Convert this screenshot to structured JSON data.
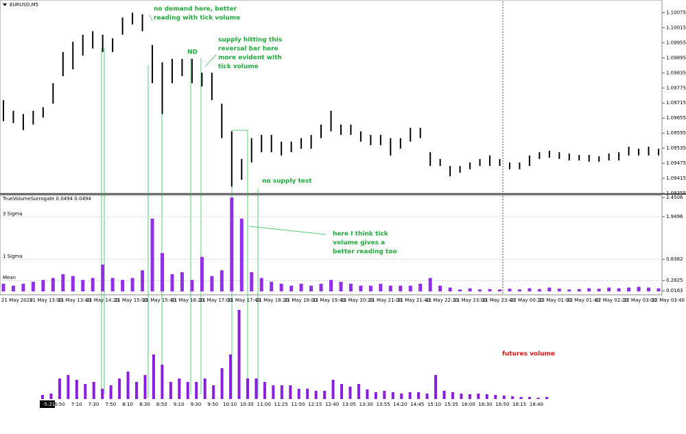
{
  "chart_data": [
    {
      "type": "range",
      "title": "EURUSD,M5",
      "color": "#000000",
      "high": [
        1.09726,
        1.09684,
        1.09671,
        1.09684,
        1.09698,
        1.09794,
        1.09918,
        1.09959,
        1.09987,
        1.10001,
        1.09987,
        1.09973,
        1.10056,
        1.10075,
        1.10069,
        1.09946,
        1.09877,
        1.09891,
        1.09891,
        1.09891,
        1.09836,
        1.09836,
        1.09712,
        1.09602,
        1.09492,
        1.09575,
        1.09588,
        1.09588,
        1.09561,
        1.09561,
        1.09575,
        1.09588,
        1.09629,
        1.09684,
        1.09629,
        1.09629,
        1.09602,
        1.09588,
        1.09588,
        1.09575,
        1.09575,
        1.09616,
        1.09616,
        1.09519,
        1.09492,
        1.09464,
        1.09464,
        1.09478,
        1.09492,
        1.09506,
        1.09492,
        1.09478,
        1.09478,
        1.09506,
        1.09519,
        1.09525,
        1.09519,
        1.09514,
        1.09508,
        1.09508,
        1.09503,
        1.09514,
        1.09519,
        1.09541,
        1.09533,
        1.09541,
        1.09533
      ],
      "low": [
        1.09643,
        1.09635,
        1.09607,
        1.09629,
        1.09657,
        1.09712,
        1.09822,
        1.09849,
        1.09904,
        1.09932,
        1.09918,
        1.09918,
        1.09987,
        1.10028,
        1.10001,
        1.09794,
        1.09671,
        1.09794,
        1.09822,
        1.09794,
        1.09781,
        1.09726,
        1.09575,
        1.09382,
        1.09409,
        1.09478,
        1.09519,
        1.09519,
        1.09506,
        1.09519,
        1.09533,
        1.09533,
        1.09575,
        1.09602,
        1.09588,
        1.09588,
        1.09561,
        1.09547,
        1.09547,
        1.09506,
        1.09533,
        1.09561,
        1.09575,
        1.09464,
        1.09464,
        1.09423,
        1.09437,
        1.09451,
        1.09464,
        1.09464,
        1.09464,
        1.09451,
        1.09451,
        1.09464,
        1.09492,
        1.09497,
        1.09492,
        1.09486,
        1.09486,
        1.09481,
        1.09481,
        1.09486,
        1.09486,
        1.09506,
        1.09506,
        1.09506,
        1.09506
      ],
      "ylim": [
        1.09355,
        1.1012
      ],
      "yticks": [
        1.10075,
        1.10015,
        1.09955,
        1.09895,
        1.09835,
        1.09775,
        1.09715,
        1.09655,
        1.09595,
        1.09535,
        1.09475,
        1.09415,
        1.09355
      ]
    },
    {
      "type": "bar",
      "title": "TrueVolumeSurrogate 0.0494 0.0494",
      "color": "#9130e6",
      "values": [
        0.2,
        0.15,
        0.2,
        0.25,
        0.3,
        0.35,
        0.45,
        0.4,
        0.3,
        0.35,
        0.7,
        0.35,
        0.3,
        0.35,
        0.55,
        1.9,
        1.0,
        0.45,
        0.5,
        0.3,
        0.9,
        0.4,
        0.55,
        2.45,
        1.9,
        0.5,
        0.35,
        0.25,
        0.2,
        0.15,
        0.2,
        0.15,
        0.2,
        0.3,
        0.25,
        0.2,
        0.15,
        0.15,
        0.2,
        0.15,
        0.15,
        0.15,
        0.2,
        0.35,
        0.15,
        0.1,
        0.05,
        0.08,
        0.05,
        0.06,
        0.05,
        0.07,
        0.05,
        0.08,
        0.06,
        0.1,
        0.07,
        0.05,
        0.06,
        0.08,
        0.07,
        0.1,
        0.08,
        0.1,
        0.12,
        0.1,
        0.08
      ],
      "ylim": [
        0,
        2.4506
      ],
      "yticks": [
        2.4506,
        1.9496,
        0.8382,
        0.2825,
        0.0163
      ],
      "levels": [
        {
          "value": 1.9496,
          "label": "3 Sigma"
        },
        {
          "value": 0.8382,
          "label": "1 Sigma"
        },
        {
          "value": 0.2825,
          "label": "Mean"
        }
      ],
      "xticks": [
        "21 May 2020",
        "21 May 13:00",
        "21 May 13:40",
        "21 May 14:20",
        "21 May 15:00",
        "21 May 15:40",
        "21 May 16:20",
        "21 May 17:00",
        "21 May 17:40",
        "21 May 18:20",
        "21 May 19:00",
        "21 May 19:40",
        "21 May 20:20",
        "21 May 21:00",
        "21 May 21:40",
        "21 May 22:20",
        "21 May 23:00",
        "21 May 23:40",
        "22 May 00:20",
        "22 May 01:00",
        "22 May 01:40",
        "22 May 02:20",
        "22 May 03:00",
        "22 May 03:40"
      ]
    },
    {
      "type": "bar",
      "title": "futures volume",
      "color": "#8a1ee0",
      "values": [
        6,
        8,
        30,
        35,
        28,
        22,
        25,
        15,
        20,
        30,
        40,
        25,
        35,
        65,
        50,
        25,
        30,
        25,
        25,
        30,
        20,
        45,
        65,
        130,
        30,
        30,
        25,
        20,
        20,
        20,
        15,
        15,
        12,
        12,
        28,
        22,
        18,
        22,
        14,
        10,
        12,
        10,
        8,
        10,
        10,
        8,
        35,
        12,
        10,
        8,
        7,
        8,
        7,
        6,
        5,
        4,
        3,
        3,
        2,
        3
      ],
      "ylim": [
        0,
        130
      ],
      "xticks": [
        "-5:21",
        "6:50",
        "7:10",
        "7:30",
        "7:50",
        "8:10",
        "8:30",
        "8:50",
        "9:10",
        "9:30",
        "9:50",
        "10:10",
        "10:35",
        "11:00",
        "11:25",
        "11:50",
        "12:15",
        "12:40",
        "13:05",
        "13:30",
        "13:55",
        "14:20",
        "14:45",
        "15:10",
        "15:35",
        "16:00",
        "16:30",
        "16:50",
        "18:15",
        "18:40"
      ]
    },
    {
      "annotations": [
        [
          "no demand here, better",
          "reading with tick volume"
        ],
        [
          "ND"
        ],
        [
          "supply hitting this",
          "reversal bar here",
          "more evident with",
          "tick volume"
        ],
        [
          "no supply test"
        ],
        [
          "here I think tick",
          "volume gives a",
          "better reading too"
        ]
      ]
    }
  ]
}
